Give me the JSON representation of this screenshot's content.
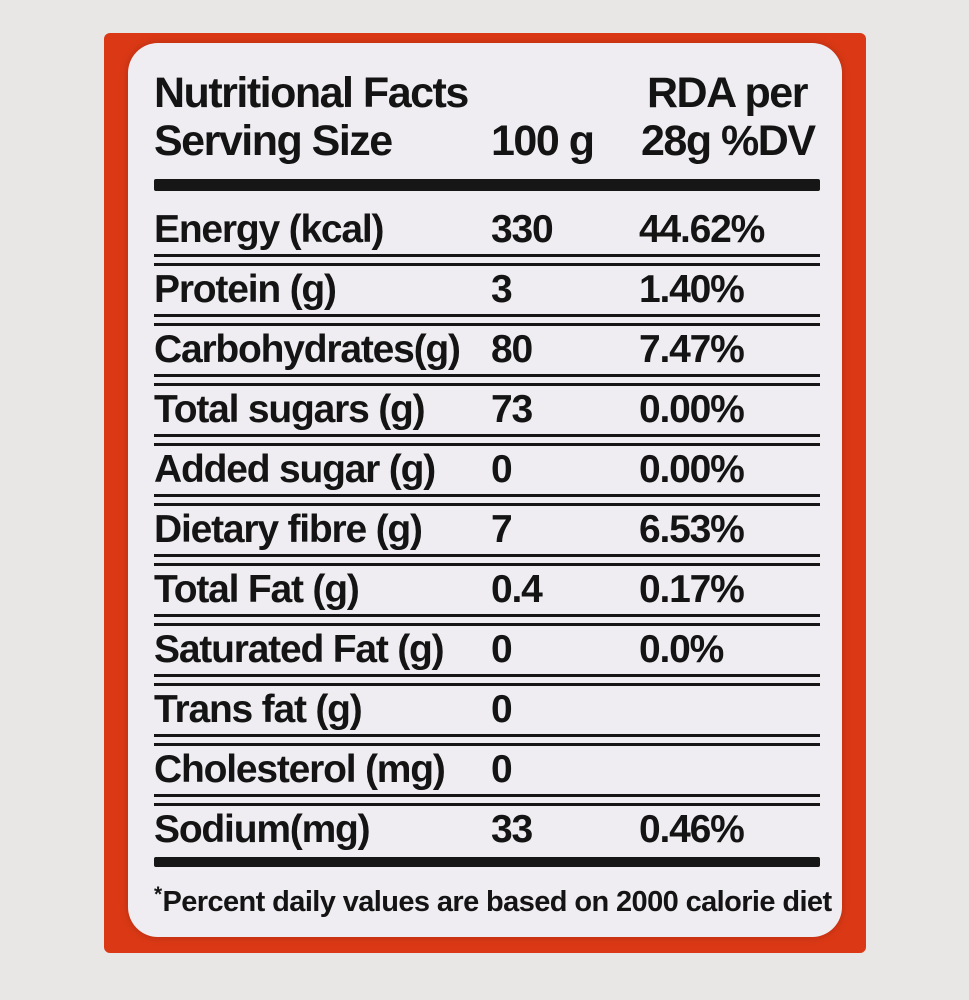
{
  "header": {
    "title": "Nutritional Facts",
    "serving_label": "Serving Size",
    "serving_amount": "100 g",
    "rda_top": "RDA per",
    "rda_bottom": "28g %DV"
  },
  "rows": [
    {
      "label": "Energy (kcal)",
      "value": "330",
      "dv": "44.62%"
    },
    {
      "label": "Protein (g)",
      "value": "3",
      "dv": "1.40%"
    },
    {
      "label": "Carbohydrates(g)",
      "value": "80",
      "dv": "7.47%"
    },
    {
      "label": "Total sugars (g)",
      "value": "73",
      "dv": "0.00%"
    },
    {
      "label": "Added sugar (g)",
      "value": "0",
      "dv": "0.00%"
    },
    {
      "label": "Dietary fibre (g)",
      "value": "7",
      "dv": "6.53%"
    },
    {
      "label": "Total Fat (g)",
      "value": "0.4",
      "dv": "0.17%"
    },
    {
      "label": "Saturated Fat (g)",
      "value": "0",
      "dv": "0.0%"
    },
    {
      "label": "Trans fat (g)",
      "value": "0",
      "dv": ""
    },
    {
      "label": "Cholesterol (mg)",
      "value": "0",
      "dv": ""
    },
    {
      "label": "Sodium(mg)",
      "value": "33",
      "dv": "0.46%"
    }
  ],
  "footnote_asterisk": "*",
  "footnote_text": "Percent daily values are based on 2000 calorie diet",
  "colors": {
    "background": "#e8e7e5",
    "label_red": "#db3915",
    "panel": "#efedf2",
    "text": "#141414"
  }
}
